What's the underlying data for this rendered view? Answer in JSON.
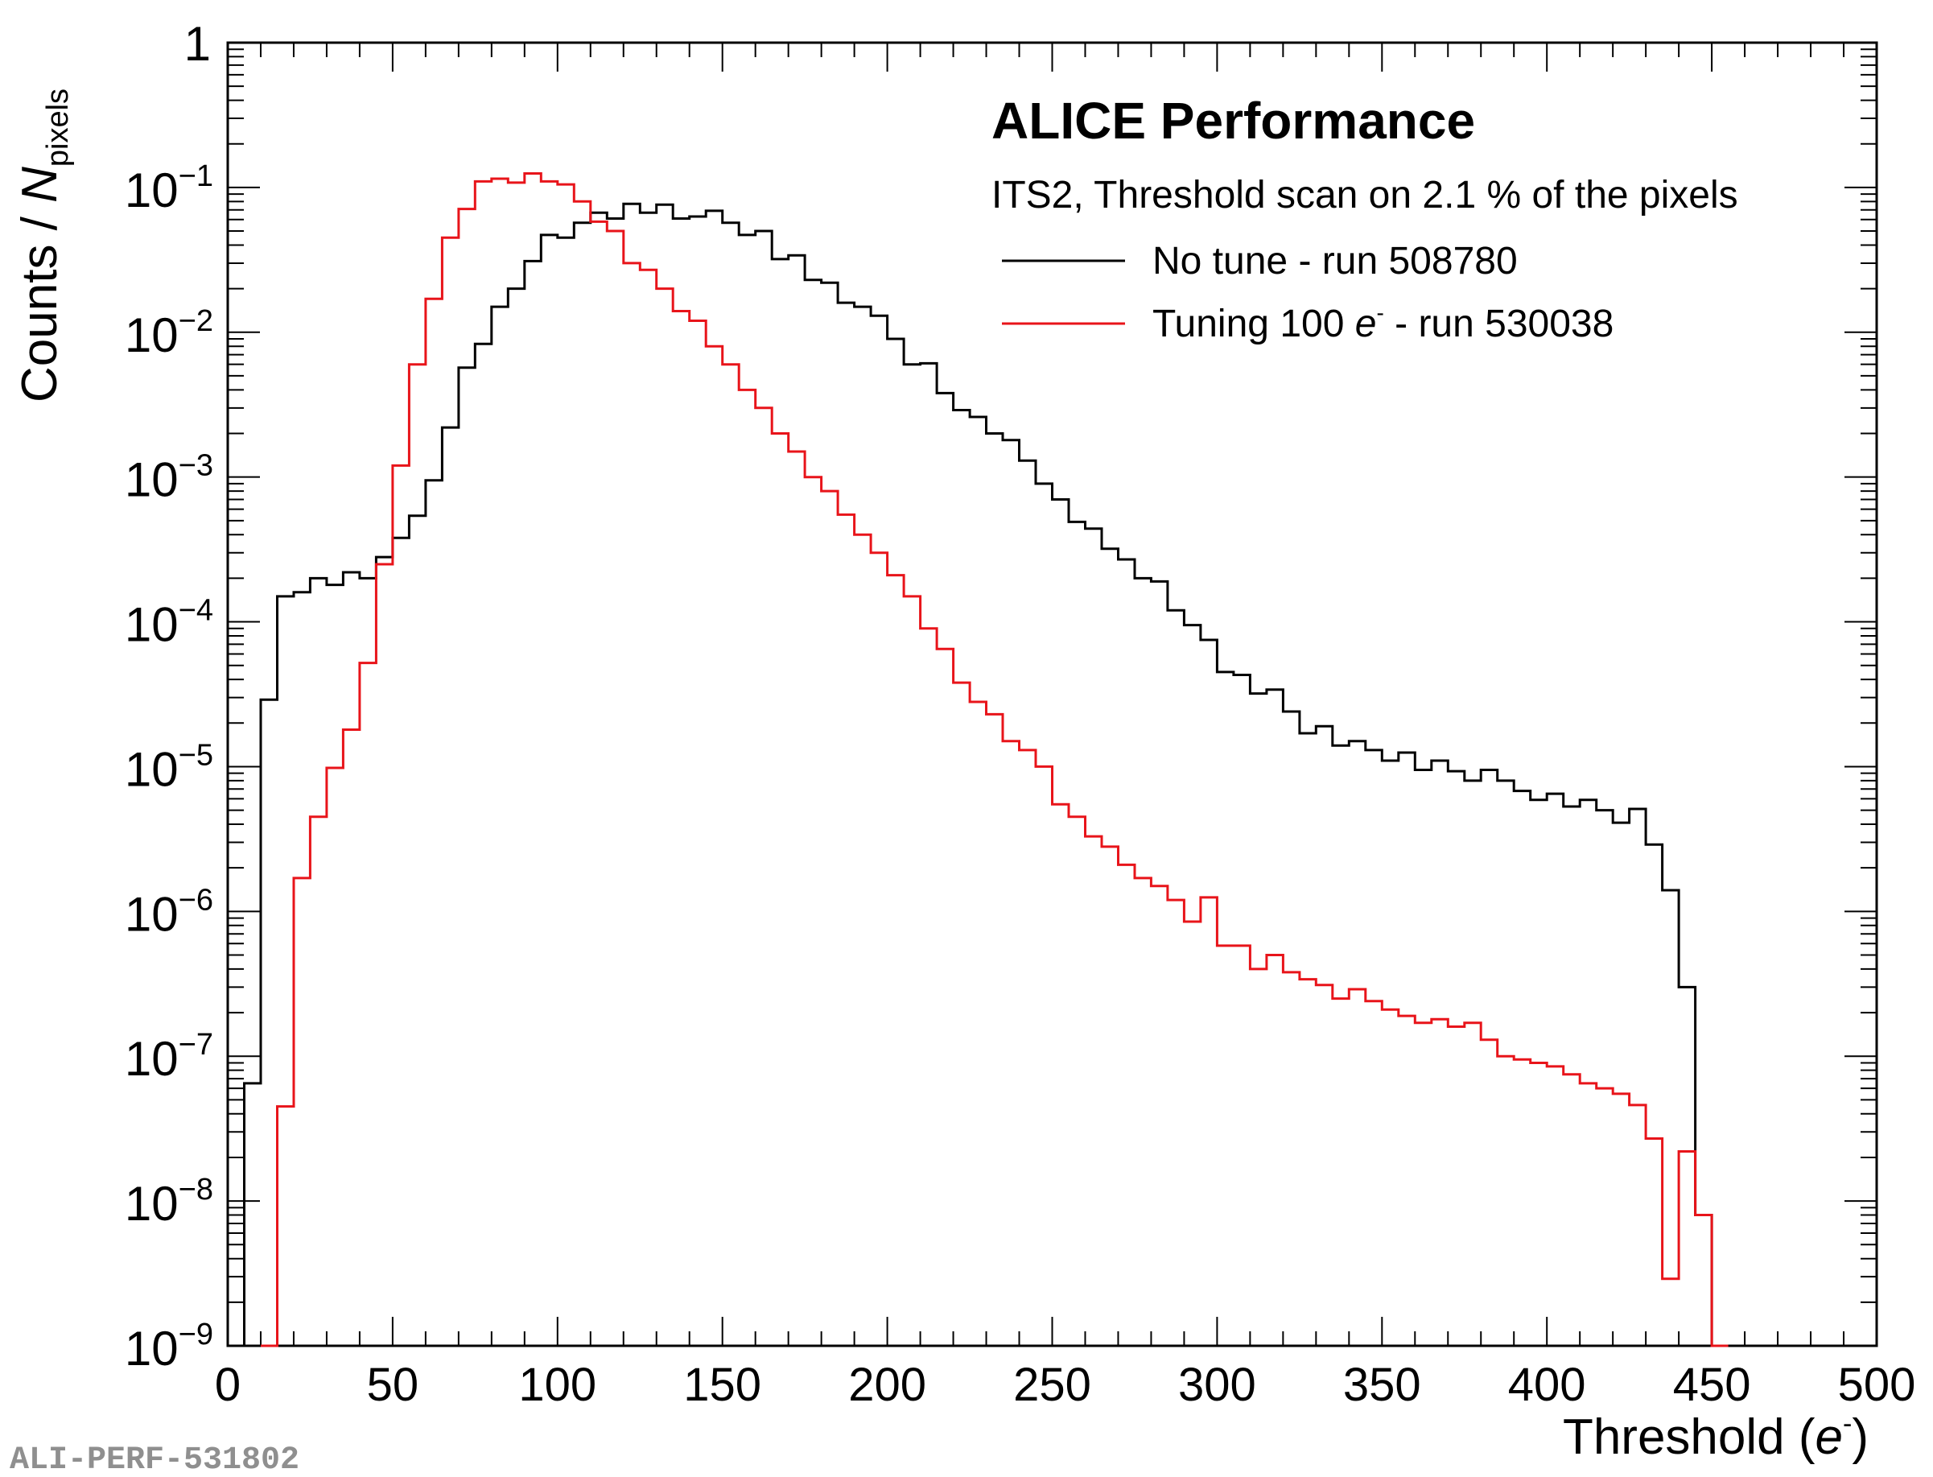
{
  "chart_data": {
    "type": "histogram-step",
    "title": "ALICE Performance",
    "subtitle": "ITS2, Threshold scan on 2.1 % of the pixels",
    "xlabel": {
      "text": "Threshold (",
      "italic": "e",
      "sup": "-",
      "close": ")"
    },
    "ylabel": {
      "text": "Counts / ",
      "italic": "N",
      "sub": "pixels"
    },
    "xlim": [
      0,
      500
    ],
    "ylim": [
      1e-09,
      1
    ],
    "yscale": "log",
    "x_ticks": [
      {
        "value": 0,
        "label": "0"
      },
      {
        "value": 50,
        "label": "50"
      },
      {
        "value": 100,
        "label": "100"
      },
      {
        "value": 150,
        "label": "150"
      },
      {
        "value": 200,
        "label": "200"
      },
      {
        "value": 250,
        "label": "250"
      },
      {
        "value": 300,
        "label": "300"
      },
      {
        "value": 350,
        "label": "350"
      },
      {
        "value": 400,
        "label": "400"
      },
      {
        "value": 450,
        "label": "450"
      },
      {
        "value": 500,
        "label": "500"
      }
    ],
    "y_ticks": [
      {
        "exp": 0,
        "label": "1"
      },
      {
        "exp": -1,
        "base": "10",
        "sup": "−1"
      },
      {
        "exp": -2,
        "base": "10",
        "sup": "−2"
      },
      {
        "exp": -3,
        "base": "10",
        "sup": "−3"
      },
      {
        "exp": -4,
        "base": "10",
        "sup": "−4"
      },
      {
        "exp": -5,
        "base": "10",
        "sup": "−5"
      },
      {
        "exp": -6,
        "base": "10",
        "sup": "−6"
      },
      {
        "exp": -7,
        "base": "10",
        "sup": "−7"
      },
      {
        "exp": -8,
        "base": "10",
        "sup": "−8"
      },
      {
        "exp": -9,
        "base": "10",
        "sup": "−9"
      }
    ],
    "bin_width": 5,
    "series": [
      {
        "name": "No tune - run 508780",
        "color": "#000000",
        "x_start": 5,
        "values": [
          6.5e-08,
          2.9e-05,
          0.00015,
          0.00016,
          0.0002,
          0.00018,
          0.00022,
          0.0002,
          0.00028,
          0.00038,
          0.00054,
          0.00095,
          0.0022,
          0.0057,
          0.0083,
          0.015,
          0.02,
          0.031,
          0.047,
          0.045,
          0.057,
          0.067,
          0.061,
          0.077,
          0.067,
          0.076,
          0.061,
          0.063,
          0.069,
          0.057,
          0.047,
          0.05,
          0.032,
          0.034,
          0.023,
          0.022,
          0.016,
          0.015,
          0.013,
          0.009,
          0.006,
          0.0061,
          0.0038,
          0.0029,
          0.0026,
          0.002,
          0.0018,
          0.0013,
          0.0009,
          0.0007,
          0.00049,
          0.00044,
          0.00032,
          0.00027,
          0.0002,
          0.00019,
          0.00012,
          9.5e-05,
          7.5e-05,
          4.5e-05,
          4.3e-05,
          3.2e-05,
          3.4e-05,
          2.4e-05,
          1.7e-05,
          1.9e-05,
          1.4e-05,
          1.5e-05,
          1.3e-05,
          1.1e-05,
          1.25e-05,
          9.5e-06,
          1.1e-05,
          9.3e-06,
          8e-06,
          9.5e-06,
          8e-06,
          6.8e-06,
          5.9e-06,
          6.5e-06,
          5.3e-06,
          5.9e-06,
          5e-06,
          4.1e-06,
          5.1e-06,
          2.9e-06,
          1.4e-06,
          3e-07,
          8e-09,
          1e-09
        ]
      },
      {
        "name": "Tuning 100 e- - run 530038",
        "color": "#e8141a",
        "x_start": 10,
        "values": [
          1e-10,
          4.5e-08,
          1.7e-06,
          4.5e-06,
          9.8e-06,
          1.8e-05,
          5.2e-05,
          0.00025,
          0.0012,
          0.006,
          0.017,
          0.045,
          0.071,
          0.11,
          0.115,
          0.108,
          0.125,
          0.11,
          0.105,
          0.08,
          0.058,
          0.05,
          0.03,
          0.027,
          0.02,
          0.014,
          0.012,
          0.008,
          0.006,
          0.004,
          0.003,
          0.002,
          0.0015,
          0.001,
          0.0008,
          0.00055,
          0.0004,
          0.0003,
          0.00021,
          0.00015,
          9e-05,
          6.5e-05,
          3.8e-05,
          2.8e-05,
          2.3e-05,
          1.5e-05,
          1.3e-05,
          1e-05,
          5.5e-06,
          4.5e-06,
          3.3e-06,
          2.8e-06,
          2.1e-06,
          1.7e-06,
          1.5e-06,
          1.2e-06,
          8.5e-07,
          1.25e-06,
          5.8e-07,
          5.8e-07,
          4e-07,
          5e-07,
          3.8e-07,
          3.4e-07,
          3.1e-07,
          2.5e-07,
          2.9e-07,
          2.4e-07,
          2.1e-07,
          1.9e-07,
          1.7e-07,
          1.8e-07,
          1.6e-07,
          1.7e-07,
          1.3e-07,
          1e-07,
          9.5e-08,
          9e-08,
          8.5e-08,
          7.5e-08,
          6.5e-08,
          6e-08,
          5.5e-08,
          4.6e-08,
          2.7e-08,
          2.9e-09,
          2.2e-08,
          8e-09,
          1e-10
        ]
      }
    ],
    "legend": [
      {
        "label_pre": "No tune - run 508780",
        "color": "#000000"
      },
      {
        "label_pre": "Tuning 100 ",
        "label_italic": "e",
        "label_sup": "-",
        "label_post": " - run 530038",
        "color": "#e8141a"
      }
    ],
    "watermark": "ALI-PERF-531802"
  }
}
